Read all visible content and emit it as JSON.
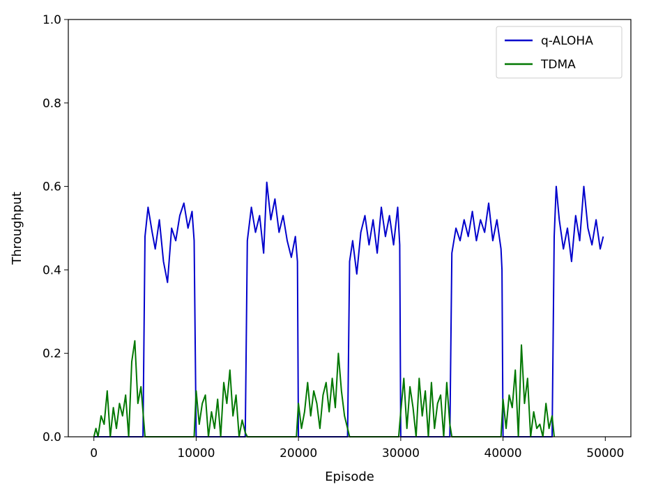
{
  "chart_data": {
    "type": "line",
    "title": "",
    "xlabel": "Episode",
    "ylabel": "Throughput",
    "xlim": [
      -2500,
      52500
    ],
    "ylim": [
      0,
      1.0
    ],
    "xticks": [
      0,
      10000,
      20000,
      30000,
      40000,
      50000
    ],
    "xtick_labels": [
      "0",
      "10000",
      "20000",
      "30000",
      "40000",
      "50000"
    ],
    "yticks": [
      0,
      0.2,
      0.4,
      0.6,
      0.8,
      1.0
    ],
    "ytick_labels": [
      "0.0",
      "0.2",
      "0.4",
      "0.6",
      "0.8",
      "1.0"
    ],
    "grid": false,
    "legend": {
      "placement": "top-right"
    },
    "colors": {
      "q-ALOHA": "#0000cc",
      "TDMA": "#007700"
    },
    "series": [
      {
        "name": "q-ALOHA",
        "color": "#0000cc",
        "x": [
          0,
          4800,
          5000,
          5300,
          5700,
          6000,
          6400,
          6800,
          7200,
          7600,
          8000,
          8400,
          8800,
          9200,
          9600,
          9800,
          10000,
          14800,
          15000,
          15400,
          15800,
          16200,
          16600,
          16900,
          17300,
          17700,
          18100,
          18500,
          18900,
          19300,
          19700,
          19900,
          20000,
          24800,
          25000,
          25300,
          25700,
          26100,
          26500,
          26900,
          27300,
          27700,
          28100,
          28500,
          28900,
          29300,
          29700,
          29900,
          30000,
          34800,
          35000,
          35400,
          35800,
          36200,
          36600,
          37000,
          37400,
          37800,
          38200,
          38600,
          39000,
          39400,
          39800,
          39900,
          40000,
          44800,
          45000,
          45200,
          45500,
          45900,
          46300,
          46700,
          47100,
          47500,
          47900,
          48300,
          48700,
          49100,
          49500,
          49800
        ],
        "y": [
          0,
          0,
          0.48,
          0.55,
          0.49,
          0.45,
          0.52,
          0.42,
          0.37,
          0.5,
          0.47,
          0.53,
          0.56,
          0.5,
          0.54,
          0.47,
          0,
          0,
          0.47,
          0.55,
          0.49,
          0.53,
          0.44,
          0.61,
          0.52,
          0.57,
          0.49,
          0.53,
          0.47,
          0.43,
          0.48,
          0.42,
          0,
          0,
          0.42,
          0.47,
          0.39,
          0.49,
          0.53,
          0.46,
          0.52,
          0.44,
          0.55,
          0.48,
          0.53,
          0.46,
          0.55,
          0.46,
          0,
          0,
          0.44,
          0.5,
          0.47,
          0.52,
          0.48,
          0.54,
          0.47,
          0.52,
          0.49,
          0.56,
          0.47,
          0.52,
          0.45,
          0.4,
          0,
          0,
          0.48,
          0.6,
          0.52,
          0.45,
          0.5,
          0.42,
          0.53,
          0.47,
          0.6,
          0.5,
          0.46,
          0.52,
          0.45,
          0.48
        ]
      },
      {
        "name": "TDMA",
        "color": "#007700",
        "x": [
          0,
          200,
          400,
          700,
          1000,
          1300,
          1600,
          1900,
          2200,
          2500,
          2800,
          3100,
          3400,
          3700,
          4000,
          4300,
          4600,
          4900,
          5000,
          9800,
          10000,
          10300,
          10600,
          10900,
          11200,
          11500,
          11800,
          12100,
          12400,
          12700,
          13000,
          13300,
          13600,
          13900,
          14200,
          14500,
          14800,
          15000,
          19800,
          20000,
          20300,
          20600,
          20900,
          21200,
          21500,
          21800,
          22100,
          22400,
          22700,
          23000,
          23300,
          23600,
          23900,
          24200,
          24500,
          24800,
          25000,
          29800,
          30000,
          30300,
          30600,
          30900,
          31200,
          31500,
          31800,
          32100,
          32400,
          32700,
          33000,
          33300,
          33600,
          33900,
          34200,
          34500,
          34800,
          35000,
          39800,
          40000,
          40300,
          40600,
          40900,
          41200,
          41500,
          41800,
          42100,
          42400,
          42700,
          43000,
          43300,
          43600,
          43900,
          44200,
          44500,
          44800,
          45000
        ],
        "y": [
          0,
          0.02,
          0,
          0.05,
          0.03,
          0.11,
          0,
          0.07,
          0.02,
          0.08,
          0.05,
          0.1,
          0,
          0.18,
          0.23,
          0.08,
          0.12,
          0.03,
          0,
          0,
          0.11,
          0.03,
          0.08,
          0.1,
          0,
          0.06,
          0.02,
          0.09,
          0,
          0.13,
          0.08,
          0.16,
          0.05,
          0.1,
          0,
          0.04,
          0.01,
          0,
          0,
          0.08,
          0.02,
          0.06,
          0.13,
          0.05,
          0.11,
          0.08,
          0.02,
          0.1,
          0.13,
          0.06,
          0.14,
          0.07,
          0.2,
          0.11,
          0.05,
          0.02,
          0,
          0,
          0.06,
          0.14,
          0.02,
          0.12,
          0.07,
          0,
          0.14,
          0.05,
          0.11,
          0,
          0.13,
          0.02,
          0.08,
          0.1,
          0,
          0.13,
          0.03,
          0,
          0,
          0.09,
          0.02,
          0.1,
          0.07,
          0.16,
          0,
          0.22,
          0.08,
          0.14,
          0,
          0.06,
          0.02,
          0.03,
          0,
          0.08,
          0.02,
          0.05,
          0
        ]
      }
    ]
  }
}
